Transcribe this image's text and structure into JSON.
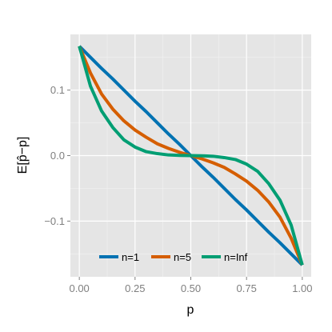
{
  "chart_data": {
    "type": "line",
    "xlabel": "p",
    "ylabel": "E[p̂−p]",
    "xlim": [
      -0.04,
      1.04
    ],
    "ylim": [
      -0.185,
      0.185
    ],
    "x_ticks": [
      "0.00",
      "0.25",
      "0.50",
      "0.75",
      "1.00"
    ],
    "x_tick_values": [
      0,
      0.25,
      0.5,
      0.75,
      1
    ],
    "y_ticks": [
      "0.1",
      "0.0",
      "−0.1"
    ],
    "y_tick_values": [
      0.1,
      0.0,
      -0.1
    ],
    "grid": true,
    "legend_position": "bottom-inside",
    "x": [
      0,
      0.05,
      0.1,
      0.15,
      0.2,
      0.25,
      0.3,
      0.35,
      0.4,
      0.45,
      0.5,
      0.55,
      0.6,
      0.65,
      0.7,
      0.75,
      0.8,
      0.85,
      0.9,
      0.95,
      1
    ],
    "series": [
      {
        "name": "n=1",
        "color": "#0072B2",
        "values": [
          0.167,
          0.15,
          0.133,
          0.117,
          0.1,
          0.083,
          0.067,
          0.05,
          0.033,
          0.017,
          0.0,
          -0.017,
          -0.033,
          -0.05,
          -0.067,
          -0.083,
          -0.1,
          -0.117,
          -0.133,
          -0.15,
          -0.167
        ]
      },
      {
        "name": "n=5",
        "color": "#D55E00",
        "values": [
          0.167,
          0.126,
          0.094,
          0.071,
          0.053,
          0.039,
          0.028,
          0.018,
          0.011,
          0.005,
          0.0,
          -0.005,
          -0.011,
          -0.018,
          -0.028,
          -0.039,
          -0.053,
          -0.071,
          -0.094,
          -0.126,
          -0.167
        ]
      },
      {
        "name": "n=Inf",
        "color": "#009E73",
        "values": [
          0.167,
          0.106,
          0.068,
          0.043,
          0.024,
          0.013,
          0.006,
          0.003,
          0.001,
          0.0003,
          0.0,
          -0.0003,
          -0.001,
          -0.003,
          -0.006,
          -0.013,
          -0.024,
          -0.043,
          -0.068,
          -0.106,
          -0.167
        ]
      }
    ]
  }
}
